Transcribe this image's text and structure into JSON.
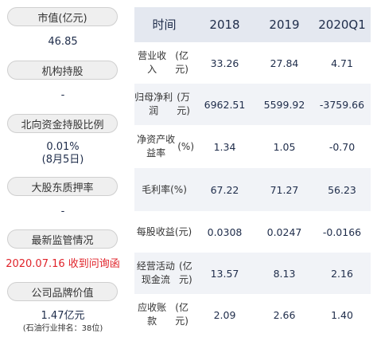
{
  "left_panel": {
    "items": [
      {
        "label": "市值(亿元)",
        "value": "46.85"
      },
      {
        "label": "机构持股",
        "value": "-"
      },
      {
        "label": "北向资金持股比例",
        "value": "0.01%",
        "value2": "(8月5日)"
      },
      {
        "label": "大股东质押率",
        "value": "-"
      },
      {
        "label": "最新监管情况",
        "value": "2020.07.16 收到问询函"
      },
      {
        "label": "公司品牌价值",
        "value": "1.47亿元",
        "value2": "(石油行业排名：38位)"
      }
    ],
    "colors": {
      "highlight": "#e0232a",
      "value": "#1e2c4a"
    }
  },
  "table": {
    "headers": [
      "时间",
      "2018",
      "2019",
      "2020Q1"
    ],
    "rows": [
      {
        "metric": "营业收入",
        "unit": "(亿元)",
        "values": [
          "33.26",
          "27.84",
          "4.71"
        ]
      },
      {
        "metric": "归母净利润",
        "unit": "(万元)",
        "values": [
          "6962.51",
          "5599.92",
          "-3759.66"
        ]
      },
      {
        "metric": "净资产收益率",
        "unit": "(%)",
        "values": [
          "1.34",
          "1.05",
          "-0.70"
        ]
      },
      {
        "metric": "毛利率",
        "unit": "(%)",
        "values": [
          "67.22",
          "71.27",
          "56.23"
        ]
      },
      {
        "metric": "每股收益",
        "unit": "(元)",
        "values": [
          "0.0308",
          "0.0247",
          "-0.0166"
        ]
      },
      {
        "metric": "经营活动现金流",
        "unit": "(亿元)",
        "values": [
          "13.57",
          "8.13",
          "2.16"
        ]
      },
      {
        "metric": "应收账款",
        "unit": "(亿元)",
        "values": [
          "2.09",
          "2.66",
          "1.40"
        ]
      }
    ],
    "colors": {
      "header_bg": "#e4e8f0",
      "alt_row_bg": "#f1f3f7"
    }
  }
}
